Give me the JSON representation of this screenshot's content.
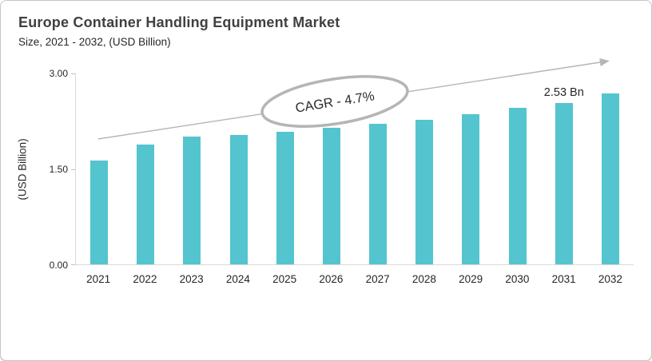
{
  "card": {
    "title": "Europe Container Handling Equipment Market",
    "subtitle": "Size, 2021 - 2032, (USD Billion)"
  },
  "chart_data": {
    "type": "bar",
    "title": "Europe Container Handling Equipment Market",
    "subtitle": "Size, 2021 - 2032, (USD Billion)",
    "categories": [
      "2021",
      "2022",
      "2023",
      "2024",
      "2025",
      "2026",
      "2027",
      "2028",
      "2029",
      "2030",
      "2031",
      "2032"
    ],
    "values": [
      1.62,
      1.88,
      2.0,
      2.03,
      2.07,
      2.14,
      2.2,
      2.26,
      2.35,
      2.45,
      2.53,
      2.67
    ],
    "unit": "USD Billion",
    "ylabel": "(USD Billion)",
    "xlabel": "",
    "ylim": [
      0,
      3
    ],
    "yticks": [
      "0.00",
      "1.50",
      "3.00"
    ],
    "grid": false,
    "legend": "none",
    "bar_color": "#54c4cf",
    "axis_color": "#d9d9d9",
    "annotation_color": "#b5b5b5",
    "text_color": "#262626",
    "annotations": {
      "cagr_label": "CAGR - 4.7%",
      "point_label": {
        "category": "2031",
        "text": "2.53 Bn"
      },
      "trend_arrow": "rising left-to-right"
    }
  }
}
